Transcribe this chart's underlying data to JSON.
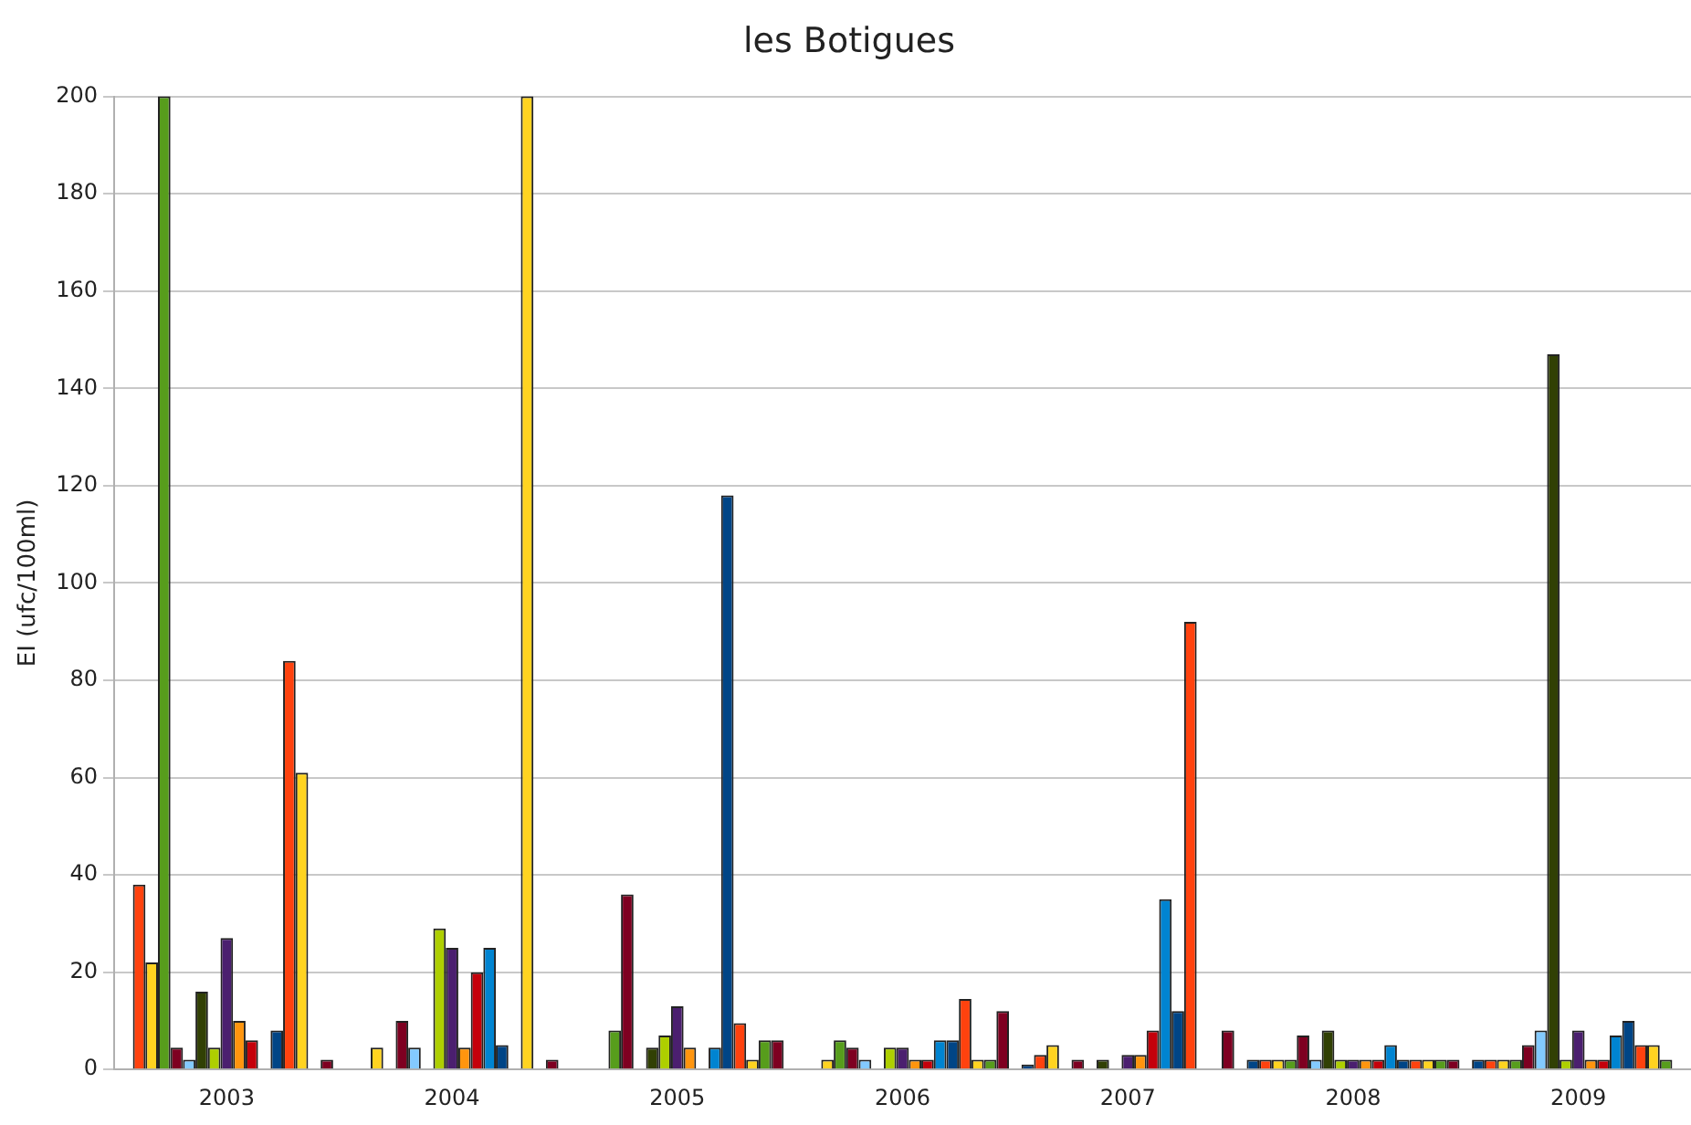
{
  "chart_data": {
    "type": "bar",
    "title": "les Botigues",
    "ylabel": "EI (ufc/100ml)",
    "categories": [
      "2003",
      "2004",
      "2005",
      "2006",
      "2007",
      "2008",
      "2009"
    ],
    "ylim": [
      0,
      200
    ],
    "yticks": [
      0,
      20,
      40,
      60,
      80,
      100,
      120,
      140,
      160,
      180,
      200
    ],
    "grid": "y",
    "legend": false,
    "series": [
      {
        "color": "#004586",
        "values": [
          0,
          0,
          0,
          0,
          1,
          2,
          2
        ]
      },
      {
        "color": "#ff420e",
        "values": [
          38,
          0,
          0,
          0,
          3,
          2,
          2
        ]
      },
      {
        "color": "#ffd320",
        "values": [
          22,
          4.5,
          0,
          2,
          5,
          2,
          2
        ]
      },
      {
        "color": "#579d1c",
        "values": [
          200,
          0,
          8,
          6,
          0,
          2,
          2
        ]
      },
      {
        "color": "#7e0021",
        "values": [
          4.5,
          10,
          36,
          4.5,
          2,
          7,
          5
        ]
      },
      {
        "color": "#83caff",
        "values": [
          2,
          4.5,
          0,
          2,
          0,
          2,
          8
        ]
      },
      {
        "color": "#314004",
        "values": [
          16,
          0,
          4.5,
          0,
          2,
          8,
          147
        ]
      },
      {
        "color": "#aecf00",
        "values": [
          4.5,
          29,
          7,
          4.5,
          0,
          2,
          2
        ]
      },
      {
        "color": "#4b1f6f",
        "values": [
          27,
          25,
          13,
          4.5,
          3,
          2,
          8
        ]
      },
      {
        "color": "#ff950e",
        "values": [
          10,
          4.5,
          4.5,
          2,
          3,
          2,
          2
        ]
      },
      {
        "color": "#c5000b",
        "values": [
          6,
          20,
          0,
          2,
          8,
          2,
          2
        ]
      },
      {
        "color": "#0084d1",
        "values": [
          0,
          25,
          4.5,
          6,
          35,
          5,
          7
        ]
      },
      {
        "color": "#004586",
        "values": [
          8,
          5,
          118,
          6,
          12,
          2,
          10
        ]
      },
      {
        "color": "#ff420e",
        "values": [
          84,
          0,
          9.5,
          14.5,
          92,
          2,
          5
        ]
      },
      {
        "color": "#ffd320",
        "values": [
          61,
          200,
          2,
          2,
          0,
          2,
          5
        ]
      },
      {
        "color": "#579d1c",
        "values": [
          0,
          0,
          6,
          2,
          0,
          2,
          2
        ]
      },
      {
        "color": "#7e0021",
        "values": [
          2,
          2,
          6,
          12,
          8,
          2,
          null
        ]
      }
    ]
  }
}
